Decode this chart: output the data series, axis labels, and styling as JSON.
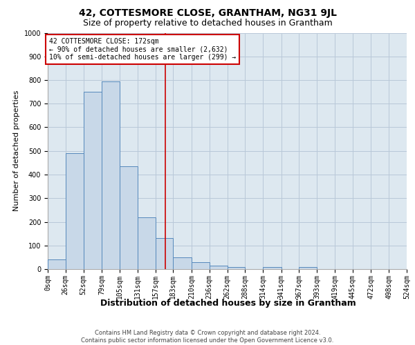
{
  "title": "42, COTTESMORE CLOSE, GRANTHAM, NG31 9JL",
  "subtitle": "Size of property relative to detached houses in Grantham",
  "xlabel": "Distribution of detached houses by size in Grantham",
  "ylabel": "Number of detached properties",
  "footer_line1": "Contains HM Land Registry data © Crown copyright and database right 2024.",
  "footer_line2": "Contains public sector information licensed under the Open Government Licence v3.0.",
  "bar_edges": [
    0,
    26,
    52,
    79,
    105,
    131,
    157,
    183,
    210,
    236,
    262,
    288,
    314,
    341,
    367,
    393,
    419,
    445,
    472,
    498,
    524
  ],
  "bar_heights": [
    40,
    490,
    750,
    795,
    435,
    220,
    130,
    50,
    28,
    16,
    10,
    0,
    8,
    0,
    8,
    0,
    0,
    0,
    0,
    0
  ],
  "bar_color": "#c8d8e8",
  "bar_edge_color": "#5588bb",
  "bar_linewidth": 0.7,
  "property_size": 172,
  "vline_color": "#cc0000",
  "annotation_text": "42 COTTESMORE CLOSE: 172sqm\n← 90% of detached houses are smaller (2,632)\n10% of semi-detached houses are larger (299) →",
  "annotation_box_color": "#cc0000",
  "ylim": [
    0,
    1000
  ],
  "yticks": [
    0,
    100,
    200,
    300,
    400,
    500,
    600,
    700,
    800,
    900,
    1000
  ],
  "grid_color": "#b8c8d8",
  "bg_color": "#dde8f0",
  "title_fontsize": 10,
  "subtitle_fontsize": 9,
  "xlabel_fontsize": 9,
  "ylabel_fontsize": 8,
  "tick_fontsize": 7,
  "annotation_fontsize": 7,
  "footer_fontsize": 6
}
